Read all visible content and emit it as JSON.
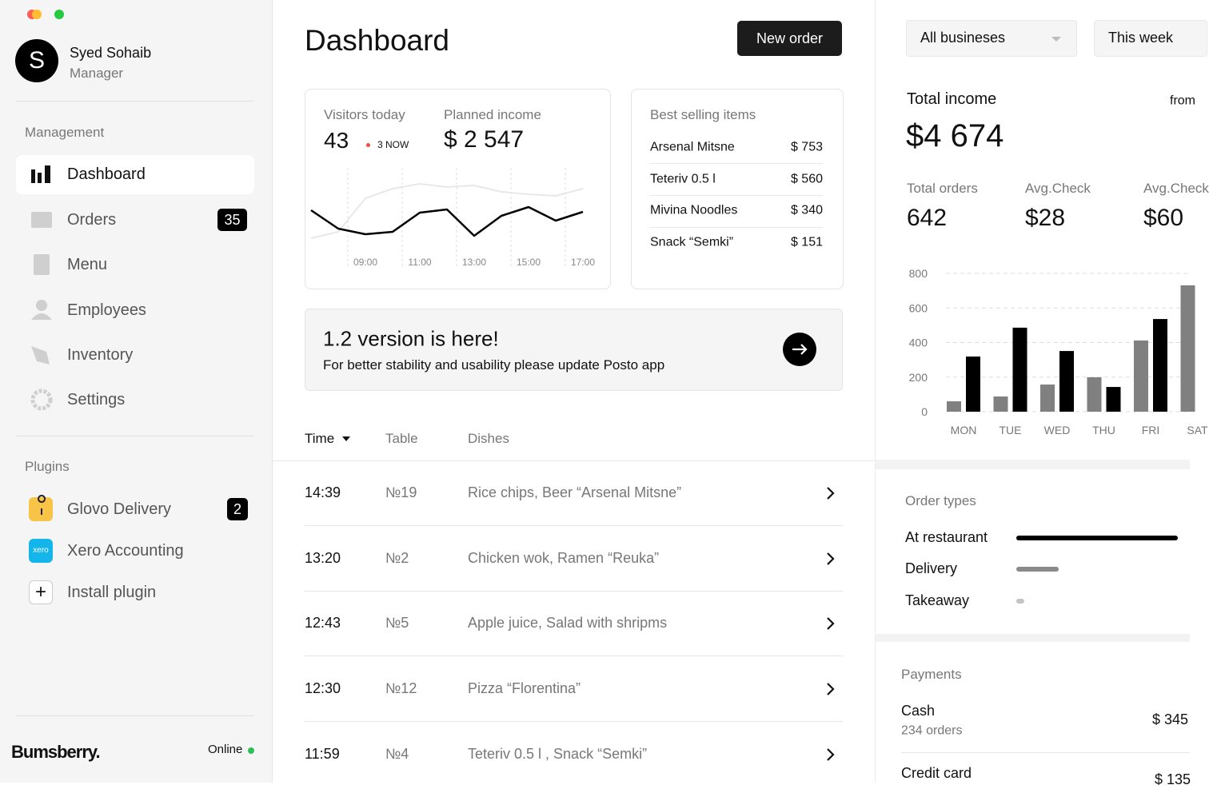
{
  "user": {
    "initial": "S",
    "name": "Syed Sohaib",
    "role": "Manager"
  },
  "nav": {
    "title": "Management",
    "items": [
      {
        "label": "Dashboard"
      },
      {
        "label": "Orders",
        "badge": "35"
      },
      {
        "label": "Menu"
      },
      {
        "label": "Employees"
      },
      {
        "label": "Inventory"
      },
      {
        "label": "Settings"
      }
    ]
  },
  "plugins": {
    "title": "Plugins",
    "items": [
      {
        "label": "Glovo Delivery",
        "badge": "2"
      },
      {
        "label": "Xero Accounting",
        "icon": "xero"
      },
      {
        "label": "Install plugin"
      }
    ]
  },
  "footer": {
    "brand": "Bumsberry.",
    "status": "Online"
  },
  "header": {
    "title": "Dashboard",
    "button": "New order"
  },
  "visitors": {
    "label": "Visitors today",
    "value": "43",
    "now": "3 NOW"
  },
  "planned": {
    "label": "Planned income",
    "value": "$ 2 547"
  },
  "best_selling": {
    "title": "Best selling items",
    "items": [
      {
        "name": "Arsenal Mitsne",
        "price": "$ 753"
      },
      {
        "name": "Teteriv 0.5 l",
        "price": "$ 560"
      },
      {
        "name": "Mivina  Noodles",
        "price": "$ 340"
      },
      {
        "name": "Snack “Semki”",
        "price": "$ 151"
      }
    ]
  },
  "banner": {
    "title": "1.2 version is here!",
    "text": "For better stability and usability please  update Posto app"
  },
  "orders_table": {
    "headers": [
      "Time",
      "Table",
      "Dishes"
    ],
    "rows": [
      [
        "14:39",
        "№19",
        "Rice chips, Beer “Arsenal Mitsne”"
      ],
      [
        "13:20",
        "№2",
        "Chicken wok, Ramen “Reuka”"
      ],
      [
        "12:43",
        "№5",
        "Apple juice, Salad with shripms"
      ],
      [
        "12:30",
        "№12",
        "Pizza “Florentina”"
      ],
      [
        "11:59",
        "№4",
        "Teteriv 0.5 l , Snack “Semki”"
      ]
    ]
  },
  "filters": {
    "business": "All busineses",
    "period": "This week"
  },
  "income": {
    "label": "Total income",
    "from": "from",
    "value": "$4 674"
  },
  "stats": [
    {
      "label": "Total orders",
      "value": "642"
    },
    {
      "label": "Avg.Check",
      "value": "$28"
    },
    {
      "label": "Avg.Check",
      "value": "$60"
    }
  ],
  "payments": {
    "title": "Payments",
    "items": [
      {
        "name": "Cash",
        "orders": "234 orders",
        "amount": "$ 345"
      },
      {
        "name": "Credit card",
        "amount": "$ 135"
      }
    ]
  },
  "chart_data": [
    {
      "type": "line",
      "categories": [
        null,
        null,
        "09:00",
        null,
        "11:00",
        null,
        "13:00",
        null,
        "15:00",
        null,
        "17:00"
      ],
      "ylim": [
        0,
        12
      ],
      "series": [
        {
          "color": "#e8e8e8",
          "values": [
            2.2,
            3.0,
            7.2,
            8.4,
            9.0,
            8.6,
            8.8,
            8.0,
            7.7,
            7.5,
            8.4
          ]
        },
        {
          "color": "#000000",
          "values": [
            5.7,
            3.4,
            2.7,
            3.0,
            5.4,
            5.8,
            2.5,
            5.0,
            6.1,
            4.4,
            5.5
          ]
        }
      ]
    },
    {
      "type": "bar",
      "categories": [
        "MON",
        "TUE",
        "WED",
        "THU",
        "FRI",
        "SAT"
      ],
      "ylim": [
        0,
        800
      ],
      "yticks": [
        0,
        200,
        400,
        600,
        800
      ],
      "grid": true,
      "series": [
        {
          "color": "#808080",
          "values": [
            60,
            88,
            157,
            199,
            412,
            731
          ]
        },
        {
          "color": "#000000",
          "values": [
            319,
            486,
            351,
            143,
            536,
            null
          ]
        }
      ]
    },
    {
      "type": "hbar",
      "title": "Order types",
      "categories": [
        "At restaurant",
        "Delivery",
        "Takeaway"
      ],
      "values": [
        100,
        24,
        2
      ],
      "xlim": [
        0,
        100
      ],
      "colors": [
        "#000000",
        "#8a8a8a",
        "#c4c4c4"
      ]
    }
  ]
}
